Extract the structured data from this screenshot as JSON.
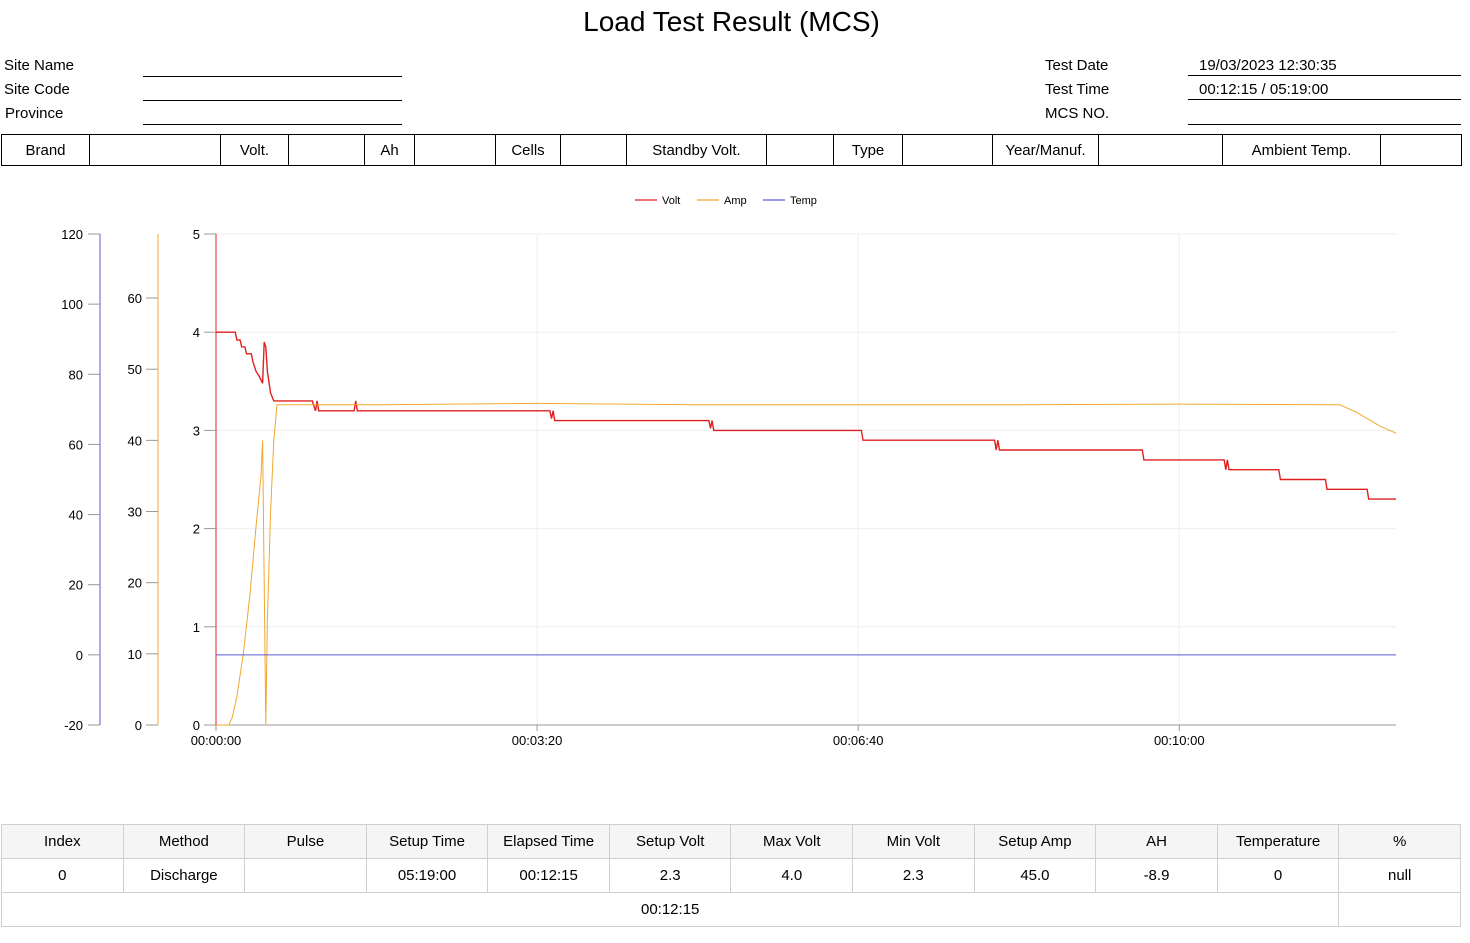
{
  "report": {
    "title": "Load Test Result (MCS)",
    "site_name_label": "Site Name",
    "site_code_label": "Site Code",
    "province_label": "Province",
    "test_date_label": "Test Date",
    "test_date_value": "19/03/2023 12:30:35",
    "test_time_label": "Test Time",
    "test_time_value": "00:12:15 / 05:19:00",
    "mcs_no_label": "MCS NO."
  },
  "spec_table": {
    "brand": "Brand",
    "volt": "Volt.",
    "ah": "Ah",
    "cells": "Cells",
    "standby_volt": "Standby Volt.",
    "type": "Type",
    "year_manuf": "Year/Manuf.",
    "ambient_temp": "Ambient Temp."
  },
  "chart_data": {
    "type": "line",
    "legend_position": "top-center",
    "grid": true,
    "x": [
      "00:00:00",
      "00:03:20",
      "00:06:40",
      "00:10:00"
    ],
    "xlim_seconds": [
      0,
      735
    ],
    "axes": {
      "temp_axis": {
        "ticks": [
          -20,
          0,
          20,
          40,
          60,
          80,
          100,
          120
        ],
        "color": "#5b5bd6"
      },
      "amp_axis": {
        "ticks": [
          0,
          10,
          20,
          30,
          40,
          50,
          60
        ],
        "color": "#f0a830"
      },
      "volt_axis": {
        "ticks": [
          0,
          1,
          2,
          3,
          4,
          5
        ],
        "color": "#e02020"
      }
    },
    "series": [
      {
        "name": "Volt",
        "color": "#e02020",
        "axis": "volt",
        "points": [
          [
            0,
            4.0
          ],
          [
            12,
            4.0
          ],
          [
            13,
            3.92
          ],
          [
            15,
            3.92
          ],
          [
            16,
            3.85
          ],
          [
            18,
            3.85
          ],
          [
            19,
            3.78
          ],
          [
            22,
            3.78
          ],
          [
            23,
            3.7
          ],
          [
            25,
            3.6
          ],
          [
            27,
            3.55
          ],
          [
            29,
            3.48
          ],
          [
            30,
            3.9
          ],
          [
            31,
            3.85
          ],
          [
            32,
            3.6
          ],
          [
            34,
            3.38
          ],
          [
            36,
            3.3
          ],
          [
            60,
            3.3
          ],
          [
            62,
            3.2
          ],
          [
            63,
            3.3
          ],
          [
            64,
            3.2
          ],
          [
            86,
            3.2
          ],
          [
            87,
            3.3
          ],
          [
            88,
            3.2
          ],
          [
            208,
            3.2
          ],
          [
            209,
            3.12
          ],
          [
            210,
            3.2
          ],
          [
            211,
            3.1
          ],
          [
            307,
            3.1
          ],
          [
            308,
            3.02
          ],
          [
            309,
            3.1
          ],
          [
            310,
            3.0
          ],
          [
            402,
            3.0
          ],
          [
            403,
            2.9
          ],
          [
            485,
            2.9
          ],
          [
            486,
            2.8
          ],
          [
            487,
            2.9
          ],
          [
            488,
            2.8
          ],
          [
            577,
            2.8
          ],
          [
            578,
            2.7
          ],
          [
            628,
            2.7
          ],
          [
            629,
            2.6
          ],
          [
            630,
            2.7
          ],
          [
            631,
            2.6
          ],
          [
            662,
            2.6
          ],
          [
            663,
            2.5
          ],
          [
            691,
            2.5
          ],
          [
            692,
            2.4
          ],
          [
            717,
            2.4
          ],
          [
            718,
            2.3
          ],
          [
            735,
            2.3
          ]
        ]
      },
      {
        "name": "Amp",
        "color": "#f0a830",
        "axis": "amp",
        "points": [
          [
            0,
            0
          ],
          [
            8,
            0
          ],
          [
            10,
            1
          ],
          [
            13,
            4
          ],
          [
            17,
            10
          ],
          [
            21,
            18
          ],
          [
            25,
            28
          ],
          [
            28,
            35
          ],
          [
            29,
            40
          ],
          [
            30,
            20
          ],
          [
            31,
            0
          ],
          [
            32,
            15
          ],
          [
            34,
            30
          ],
          [
            36,
            40
          ],
          [
            38,
            45
          ],
          [
            100,
            45
          ],
          [
            200,
            45.2
          ],
          [
            300,
            45
          ],
          [
            400,
            45
          ],
          [
            500,
            45
          ],
          [
            600,
            45.1
          ],
          [
            700,
            45
          ],
          [
            710,
            44
          ],
          [
            725,
            42
          ],
          [
            735,
            41
          ]
        ]
      },
      {
        "name": "Temp",
        "color": "#5b5bd6",
        "axis": "temp",
        "points": [
          [
            0,
            0
          ],
          [
            735,
            0
          ]
        ]
      }
    ]
  },
  "result_table": {
    "headers": [
      "Index",
      "Method",
      "Pulse",
      "Setup Time",
      "Elapsed Time",
      "Setup Volt",
      "Max Volt",
      "Min Volt",
      "Setup Amp",
      "AH",
      "Temperature",
      "%"
    ],
    "row": [
      "0",
      "Discharge",
      "",
      "05:19:00",
      "00:12:15",
      "2.3",
      "4.0",
      "2.3",
      "45.0",
      "-8.9",
      "0",
      "null"
    ],
    "summary": "00:12:15"
  }
}
